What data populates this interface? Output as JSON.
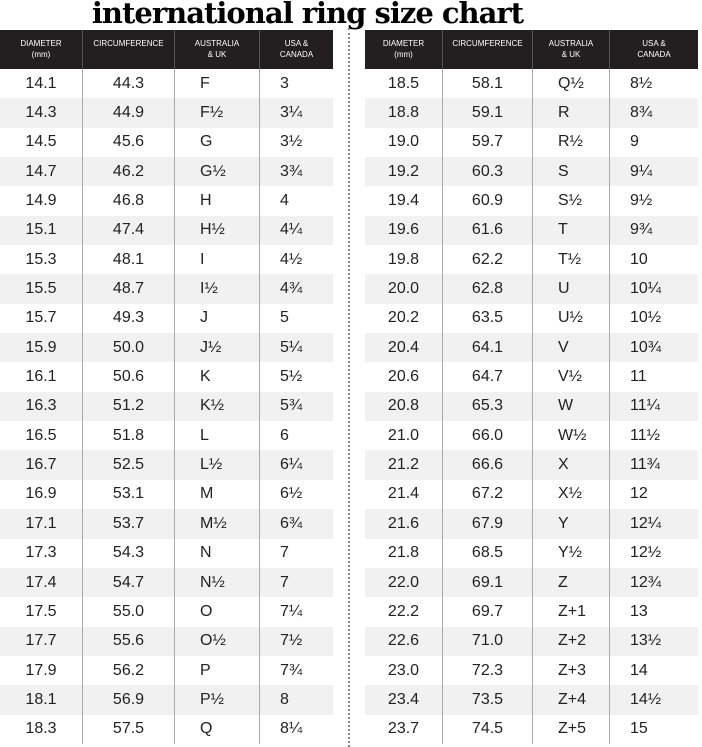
{
  "title": "international ring size chart",
  "headers": [
    "DIAMETER\n(mm)",
    "CIRCUMFERENCE",
    "AUSTRALIA\n& UK",
    "USA &\nCANADA"
  ],
  "left_rows": [
    [
      "14.1",
      "44.3",
      "F",
      "3"
    ],
    [
      "14.3",
      "44.9",
      "F½",
      "3¼"
    ],
    [
      "14.5",
      "45.6",
      "G",
      "3½"
    ],
    [
      "14.7",
      "46.2",
      "G½",
      "3¾"
    ],
    [
      "14.9",
      "46.8",
      "H",
      "4"
    ],
    [
      "15.1",
      "47.4",
      "H½",
      "4¼"
    ],
    [
      "15.3",
      "48.1",
      "I",
      "4½"
    ],
    [
      "15.5",
      "48.7",
      "I½",
      "4¾"
    ],
    [
      "15.7",
      "49.3",
      "J",
      "5"
    ],
    [
      "15.9",
      "50.0",
      "J½",
      "5¼"
    ],
    [
      "16.1",
      "50.6",
      "K",
      "5½"
    ],
    [
      "16.3",
      "51.2",
      "K½",
      "5¾"
    ],
    [
      "16.5",
      "51.8",
      "L",
      "6"
    ],
    [
      "16.7",
      "52.5",
      "L½",
      "6¼"
    ],
    [
      "16.9",
      "53.1",
      "M",
      "6½"
    ],
    [
      "17.1",
      "53.7",
      "M½",
      "6¾"
    ],
    [
      "17.3",
      "54.3",
      "N",
      "7"
    ],
    [
      "17.4",
      "54.7",
      "N½",
      "7"
    ],
    [
      "17.5",
      "55.0",
      "O",
      "7¼"
    ],
    [
      "17.7",
      "55.6",
      "O½",
      "7½"
    ],
    [
      "17.9",
      "56.2",
      "P",
      "7¾"
    ],
    [
      "18.1",
      "56.9",
      "P½",
      "8"
    ],
    [
      "18.3",
      "57.5",
      "Q",
      "8¼"
    ]
  ],
  "right_rows": [
    [
      "18.5",
      "58.1",
      "Q½",
      "8½"
    ],
    [
      "18.8",
      "59.1",
      "R",
      "8¾"
    ],
    [
      "19.0",
      "59.7",
      "R½",
      "9"
    ],
    [
      "19.2",
      "60.3",
      "S",
      "9¼"
    ],
    [
      "19.4",
      "60.9",
      "S½",
      "9½"
    ],
    [
      "19.6",
      "61.6",
      "T",
      "9¾"
    ],
    [
      "19.8",
      "62.2",
      "T½",
      "10"
    ],
    [
      "20.0",
      "62.8",
      "U",
      "10¼"
    ],
    [
      "20.2",
      "63.5",
      "U½",
      "10½"
    ],
    [
      "20.4",
      "64.1",
      "V",
      "10¾"
    ],
    [
      "20.6",
      "64.7",
      "V½",
      "11"
    ],
    [
      "20.8",
      "65.3",
      "W",
      "11¼"
    ],
    [
      "21.0",
      "66.0",
      "W½",
      "11½"
    ],
    [
      "21.2",
      "66.6",
      "X",
      "11¾"
    ],
    [
      "21.4",
      "67.2",
      "X½",
      "12"
    ],
    [
      "21.6",
      "67.9",
      "Y",
      "12¼"
    ],
    [
      "21.8",
      "68.5",
      "Y½",
      "12½"
    ],
    [
      "22.0",
      "69.1",
      "Z",
      "12¾"
    ],
    [
      "22.2",
      "69.7",
      "Z+1",
      "13"
    ],
    [
      "22.6",
      "71.0",
      "Z+2",
      "13½"
    ],
    [
      "23.0",
      "72.3",
      "Z+3",
      "14"
    ],
    [
      "23.4",
      "73.5",
      "Z+4",
      "14½"
    ],
    [
      "23.7",
      "74.5",
      "Z+5",
      "15"
    ]
  ]
}
